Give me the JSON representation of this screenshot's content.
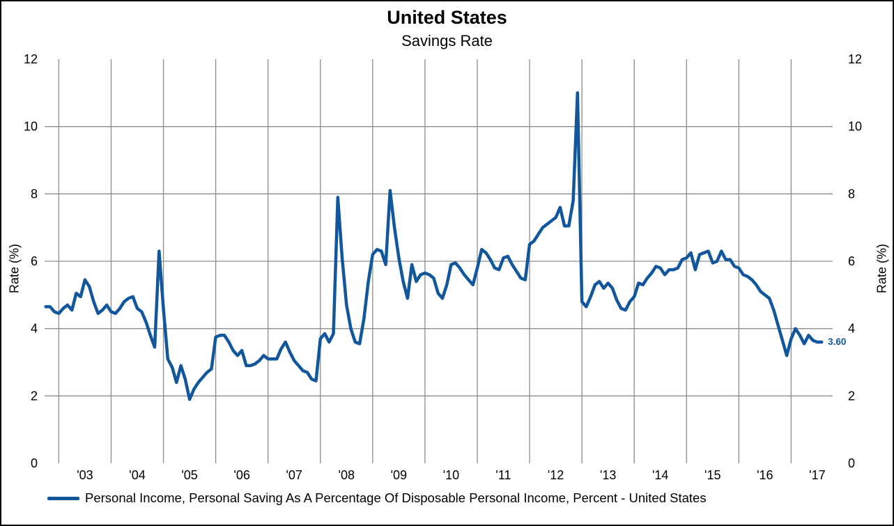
{
  "header": {
    "title": "United States",
    "subtitle": "Savings Rate"
  },
  "axes": {
    "y_left_title": "Rate (%)",
    "y_right_title": "Rate (%)",
    "y_ticks": [
      0,
      2,
      4,
      6,
      8,
      10,
      12
    ],
    "x_tick_labels": [
      "'03",
      "'04",
      "'05",
      "'06",
      "'07",
      "'08",
      "'09",
      "'10",
      "'11",
      "'12",
      "'13",
      "'14",
      "'15",
      "'16",
      "'17"
    ]
  },
  "colors": {
    "line": "#12569B",
    "grid": "#8c8c8c",
    "text": "#000000"
  },
  "legend": {
    "label": "Personal Income, Personal Saving As A Percentage Of Disposable Personal Income, Percent - United States"
  },
  "last_value_label": "3.60",
  "chart_data": {
    "type": "line",
    "title": "United States",
    "subtitle": "Savings Rate",
    "ylabel": "Rate (%)",
    "ylim": [
      0,
      12
    ],
    "grid": true,
    "legend_position": "bottom-left",
    "series": [
      {
        "name": "Personal Income, Personal Saving As A Percentage Of Disposable Personal Income, Percent - United States",
        "start_month": "2002-10",
        "frequency": "monthly",
        "last_value": 3.6,
        "values": [
          4.65,
          4.65,
          4.5,
          4.45,
          4.6,
          4.7,
          4.55,
          5.05,
          4.95,
          5.45,
          5.25,
          4.8,
          4.45,
          4.55,
          4.7,
          4.5,
          4.45,
          4.6,
          4.8,
          4.9,
          4.95,
          4.6,
          4.5,
          4.2,
          3.8,
          3.45,
          6.3,
          4.6,
          3.1,
          2.85,
          2.4,
          2.9,
          2.5,
          1.9,
          2.2,
          2.4,
          2.55,
          2.7,
          2.8,
          3.75,
          3.8,
          3.8,
          3.6,
          3.35,
          3.2,
          3.35,
          2.9,
          2.9,
          2.95,
          3.05,
          3.2,
          3.1,
          3.1,
          3.1,
          3.4,
          3.6,
          3.3,
          3.05,
          2.9,
          2.75,
          2.7,
          2.5,
          2.45,
          3.7,
          3.85,
          3.6,
          3.85,
          7.9,
          6.1,
          4.7,
          4.0,
          3.6,
          3.55,
          4.3,
          5.4,
          6.2,
          6.35,
          6.3,
          5.9,
          8.1,
          7.0,
          6.1,
          5.4,
          4.9,
          5.9,
          5.4,
          5.6,
          5.65,
          5.6,
          5.5,
          5.05,
          4.9,
          5.3,
          5.9,
          5.95,
          5.8,
          5.6,
          5.45,
          5.3,
          5.8,
          6.35,
          6.25,
          6.05,
          5.8,
          5.75,
          6.1,
          6.15,
          5.9,
          5.7,
          5.5,
          5.45,
          6.5,
          6.6,
          6.8,
          7.0,
          7.1,
          7.2,
          7.3,
          7.6,
          7.05,
          7.05,
          7.8,
          11.0,
          4.8,
          4.65,
          4.95,
          5.3,
          5.4,
          5.2,
          5.35,
          5.2,
          4.85,
          4.6,
          4.55,
          4.8,
          4.95,
          5.35,
          5.3,
          5.5,
          5.65,
          5.85,
          5.8,
          5.6,
          5.75,
          5.75,
          5.8,
          6.05,
          6.1,
          6.25,
          5.75,
          6.2,
          6.25,
          6.3,
          5.95,
          6.0,
          6.3,
          6.05,
          6.05,
          5.85,
          5.8,
          5.6,
          5.55,
          5.45,
          5.3,
          5.1,
          5.0,
          4.9,
          4.55,
          4.1,
          3.65,
          3.2,
          3.7,
          4.0,
          3.8,
          3.55,
          3.8,
          3.65,
          3.6,
          3.6
        ]
      }
    ],
    "x_axis": {
      "gridline_years": [
        2003,
        2004,
        2005,
        2006,
        2007,
        2008,
        2009,
        2010,
        2011,
        2012,
        2013,
        2014,
        2015,
        2016,
        2017
      ],
      "tick_labels": [
        "'03",
        "'04",
        "'05",
        "'06",
        "'07",
        "'08",
        "'09",
        "'10",
        "'11",
        "'12",
        "'13",
        "'14",
        "'15",
        "'16",
        "'17"
      ]
    }
  }
}
